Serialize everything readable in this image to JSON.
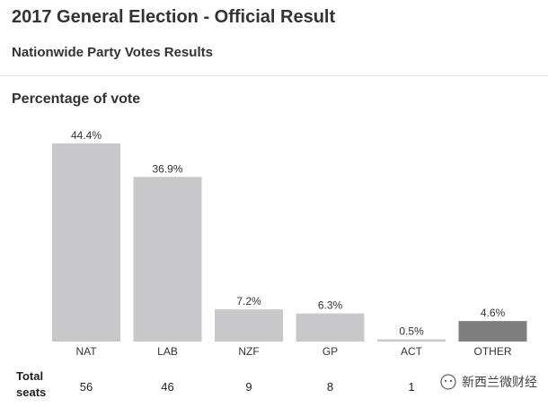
{
  "header": {
    "title": "2017 General Election - Official Result",
    "subtitle": "Nationwide Party Votes Results"
  },
  "section": {
    "title": "Percentage of vote"
  },
  "seats": {
    "label_line1": "Total",
    "label_line2": "seats"
  },
  "watermark": {
    "text": "新西兰微财经",
    "icon": "wechat-icon"
  },
  "colors": {
    "bar": "#c8c7c9",
    "bar_other": "#7f7e80",
    "text": "#333333"
  },
  "chart_data": {
    "type": "bar",
    "title": "Percentage of vote",
    "categories": [
      "NAT",
      "LAB",
      "NZF",
      "GP",
      "ACT",
      "OTHER"
    ],
    "values": [
      44.4,
      36.9,
      7.2,
      6.3,
      0.5,
      4.6
    ],
    "value_labels": [
      "44.4%",
      "36.9%",
      "7.2%",
      "6.3%",
      "0.5%",
      "4.6%"
    ],
    "seats": [
      "56",
      "46",
      "9",
      "8",
      "1",
      ""
    ],
    "unit": "%",
    "ylim": [
      0,
      44.4
    ],
    "grid": false,
    "legend": "none"
  }
}
